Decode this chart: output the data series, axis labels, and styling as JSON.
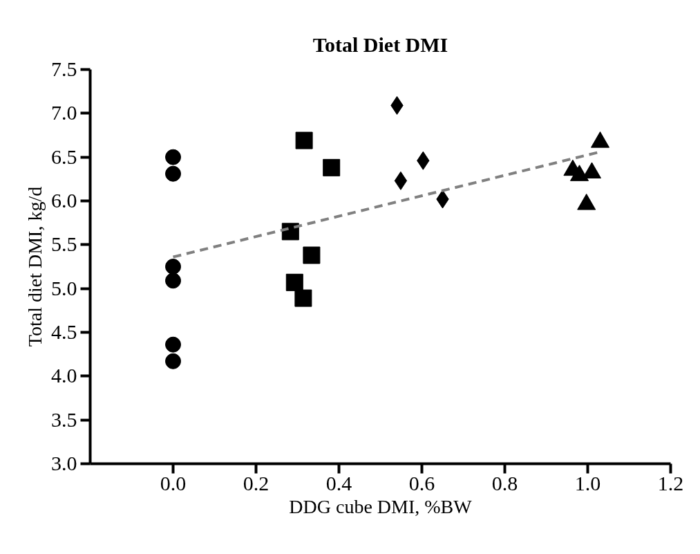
{
  "chart_data": {
    "type": "scatter",
    "title": "Total Diet DMI",
    "xlabel": "DDG cube DMI, %BW",
    "ylabel": "Total diet DMI, kg/d",
    "xlim": [
      -0.2,
      1.2
    ],
    "ylim": [
      3.0,
      7.5
    ],
    "xticks": [
      {
        "value": 0,
        "label": "0.0"
      },
      {
        "value": 0.2,
        "label": "0.2"
      },
      {
        "value": 0.4,
        "label": "0.4"
      },
      {
        "value": 0.6,
        "label": "0.6"
      },
      {
        "value": 0.8,
        "label": "0.8"
      },
      {
        "value": 1.0,
        "label": "1.0"
      },
      {
        "value": 1.2,
        "label": "1.2"
      }
    ],
    "yticks": [
      {
        "value": 3,
        "label": "3.0"
      },
      {
        "value": 3.5,
        "label": "3.5"
      },
      {
        "value": 4,
        "label": "4.0"
      },
      {
        "value": 4.5,
        "label": "4.5"
      },
      {
        "value": 5,
        "label": "5.0"
      },
      {
        "value": 5.5,
        "label": "5.5"
      },
      {
        "value": 6,
        "label": "6.0"
      },
      {
        "value": 6.5,
        "label": "6.5"
      },
      {
        "value": 7,
        "label": "7.0"
      },
      {
        "value": 7.5,
        "label": "7.5"
      }
    ],
    "grid": false,
    "series": [
      {
        "marker": "circle",
        "color": "#000000",
        "x": [
          0,
          0,
          0,
          0,
          0,
          0
        ],
        "values": [
          6.5,
          6.31,
          5.25,
          5.09,
          4.36,
          4.17
        ]
      },
      {
        "marker": "square",
        "color": "#000000",
        "x": [
          0.316,
          0.382,
          0.283,
          0.334,
          0.293,
          0.314
        ],
        "values": [
          6.69,
          6.38,
          5.65,
          5.38,
          5.07,
          4.89
        ]
      },
      {
        "marker": "diamond",
        "color": "#000000",
        "x": [
          0.54,
          0.603,
          0.549,
          0.65
        ],
        "values": [
          7.09,
          6.46,
          6.23,
          6.02
        ]
      },
      {
        "marker": "triangle",
        "color": "#000000",
        "x": [
          1.03,
          0.964,
          0.98,
          1.01,
          0.997
        ],
        "values": [
          6.67,
          6.35,
          6.29,
          6.32,
          5.96
        ]
      },
      {
        "type": "line",
        "marker": "none",
        "line_style": "dashed",
        "color": "#808080",
        "x": [
          0,
          1.03
        ],
        "values": [
          5.36,
          6.56
        ]
      }
    ]
  }
}
